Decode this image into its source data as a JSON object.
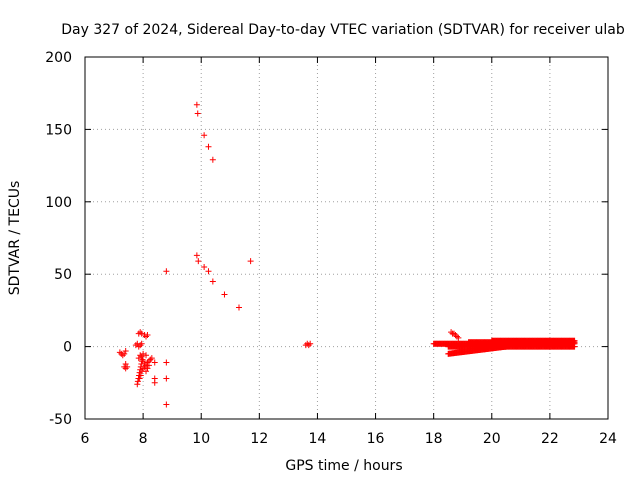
{
  "chart_data": {
    "type": "scatter",
    "title": "Day 327 of 2024, Sidereal Day-to-day VTEC variation (SDTVAR) for receiver ulab",
    "xlabel": "GPS time / hours",
    "ylabel": "SDTVAR / TECUs",
    "xlim": [
      6,
      24
    ],
    "ylim": [
      -50,
      200
    ],
    "xticks": [
      6,
      8,
      10,
      12,
      14,
      16,
      18,
      20,
      22,
      24
    ],
    "yticks": [
      -50,
      0,
      50,
      100,
      150,
      200
    ],
    "xtick_labels": [
      "6",
      "8",
      "10",
      "12",
      "14",
      "16",
      "18",
      "20",
      "22",
      "24"
    ],
    "ytick_labels": [
      "-50",
      "0",
      "50",
      "100",
      "150",
      "200"
    ],
    "grid": true,
    "marker": "+",
    "color": "#ff0000",
    "series": [
      {
        "name": "SDTVAR",
        "points": [
          [
            9.85,
            167
          ],
          [
            9.88,
            161
          ],
          [
            10.1,
            146
          ],
          [
            10.25,
            138
          ],
          [
            10.4,
            129
          ],
          [
            9.85,
            63
          ],
          [
            9.9,
            59
          ],
          [
            10.1,
            55
          ],
          [
            10.25,
            52
          ],
          [
            10.4,
            45
          ],
          [
            10.8,
            36
          ],
          [
            11.3,
            27
          ],
          [
            11.7,
            59
          ],
          [
            8.8,
            52
          ],
          [
            8.8,
            -40
          ],
          [
            8.8,
            -11
          ],
          [
            8.8,
            -22
          ],
          [
            8.4,
            -11
          ],
          [
            8.4,
            -22
          ],
          [
            8.4,
            -25
          ],
          [
            7.2,
            -4
          ],
          [
            7.25,
            -5
          ],
          [
            7.3,
            -6
          ],
          [
            7.35,
            -5
          ],
          [
            7.4,
            -3
          ],
          [
            7.35,
            -14
          ],
          [
            7.4,
            -15
          ],
          [
            7.45,
            -14
          ],
          [
            7.4,
            -12
          ],
          [
            7.75,
            1
          ],
          [
            7.8,
            2
          ],
          [
            7.85,
            0
          ],
          [
            7.9,
            1
          ],
          [
            7.95,
            2
          ],
          [
            7.85,
            9
          ],
          [
            7.9,
            10
          ],
          [
            7.95,
            9
          ],
          [
            8.05,
            8
          ],
          [
            8.1,
            7
          ],
          [
            8.15,
            8
          ],
          [
            7.8,
            -26
          ],
          [
            7.82,
            -24
          ],
          [
            7.84,
            -22
          ],
          [
            7.86,
            -20
          ],
          [
            7.88,
            -18
          ],
          [
            7.9,
            -16
          ],
          [
            7.92,
            -14
          ],
          [
            7.94,
            -12
          ],
          [
            7.96,
            -10
          ],
          [
            7.98,
            -9
          ],
          [
            8.0,
            -10
          ],
          [
            8.05,
            -12
          ],
          [
            8.1,
            -13
          ],
          [
            8.15,
            -11
          ],
          [
            8.2,
            -10
          ],
          [
            8.25,
            -9
          ],
          [
            8.3,
            -8
          ],
          [
            7.88,
            -22
          ],
          [
            7.92,
            -20
          ],
          [
            7.96,
            -17
          ],
          [
            8.0,
            -15
          ],
          [
            8.05,
            -14
          ],
          [
            8.1,
            -17
          ],
          [
            8.15,
            -15
          ],
          [
            8.2,
            -13
          ],
          [
            7.85,
            -8
          ],
          [
            7.9,
            -6
          ],
          [
            7.95,
            -7
          ],
          [
            8.0,
            -5
          ],
          [
            8.1,
            -6
          ],
          [
            13.6,
            1
          ],
          [
            13.65,
            2
          ],
          [
            13.7,
            1
          ],
          [
            13.75,
            2
          ],
          [
            18.6,
            10
          ],
          [
            18.65,
            9
          ],
          [
            18.7,
            9
          ],
          [
            18.75,
            8
          ],
          [
            18.8,
            7
          ],
          [
            18.85,
            6
          ]
        ],
        "segments": [
          {
            "x_start": 18.0,
            "x_end": 22.85,
            "y_start": 2,
            "y_end": 2
          },
          {
            "x_start": 18.5,
            "x_end": 20.5,
            "y_start": -5,
            "y_end": 0
          },
          {
            "x_start": 18.5,
            "x_end": 22.85,
            "y_start": 0,
            "y_end": 0
          },
          {
            "x_start": 19.2,
            "x_end": 22.85,
            "y_start": 3,
            "y_end": 3
          },
          {
            "x_start": 20.0,
            "x_end": 22.85,
            "y_start": 4,
            "y_end": 4
          }
        ]
      }
    ]
  }
}
